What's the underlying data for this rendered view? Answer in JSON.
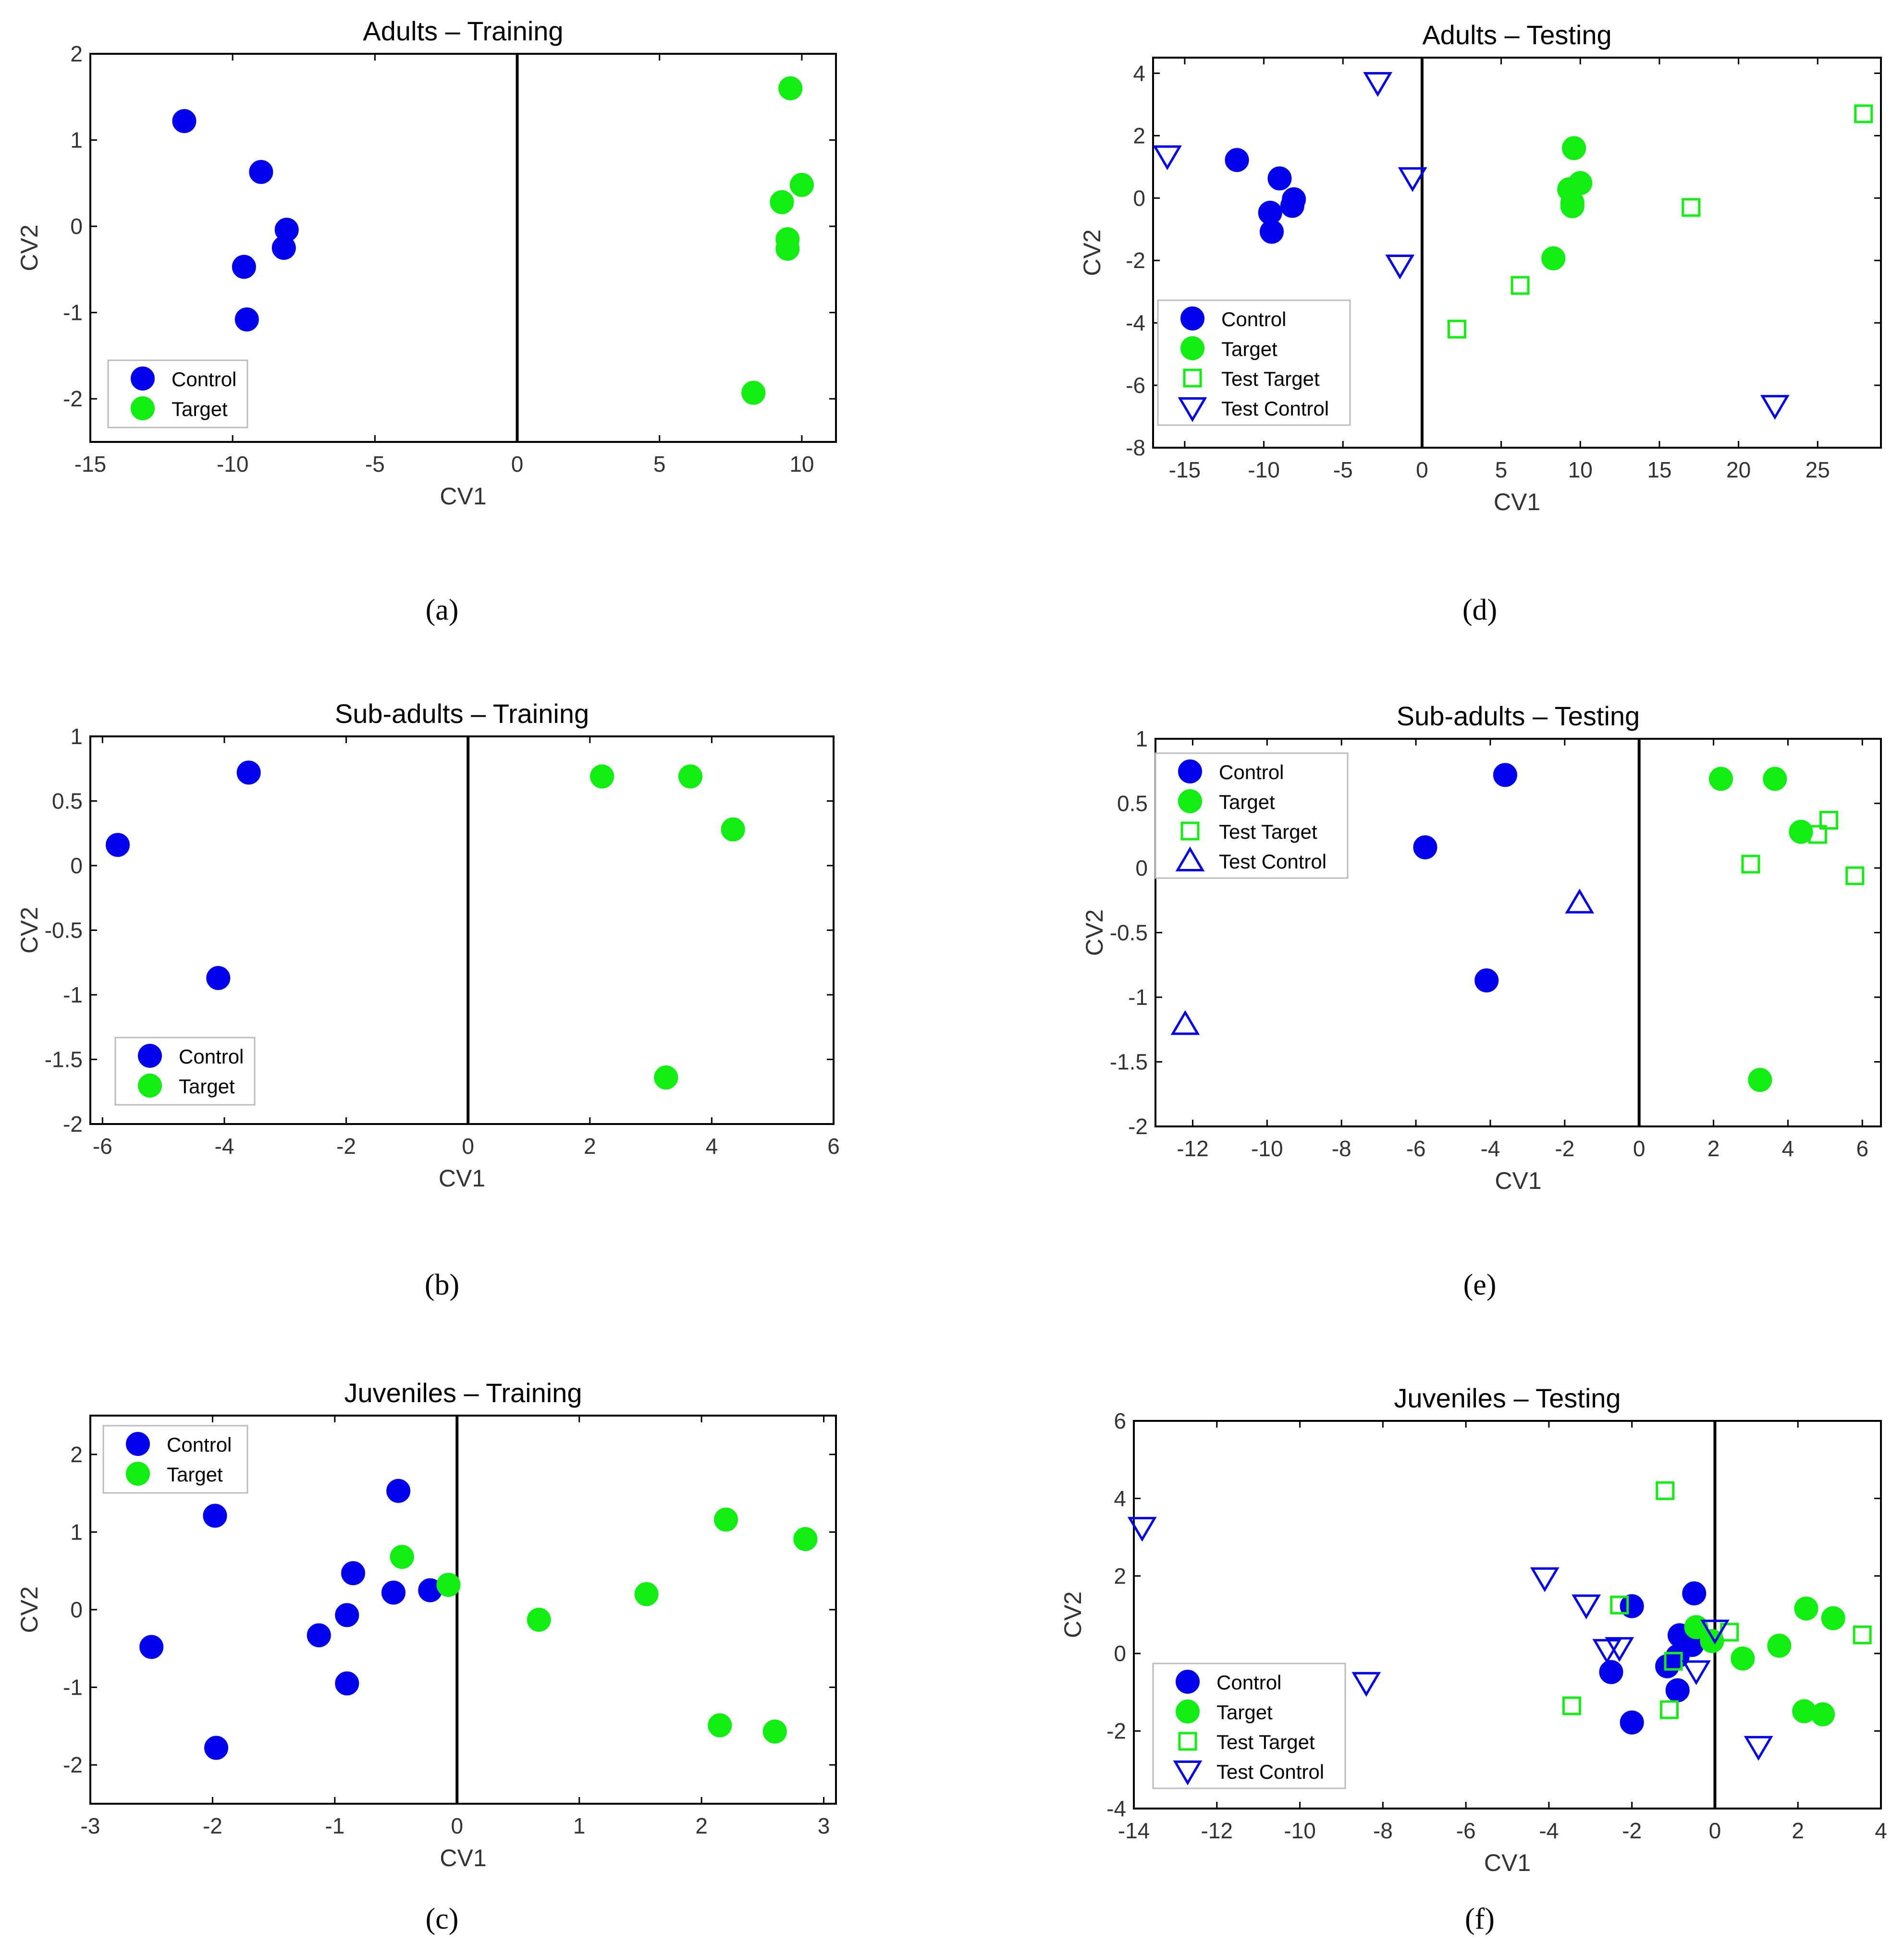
{
  "figure": {
    "captions": [
      "(a)",
      "(d)",
      "(b)",
      "(e)",
      "(c)",
      "(f)"
    ]
  },
  "colors": {
    "control": "#0000ee",
    "target": "#11ee11",
    "divider": "#000000"
  },
  "chart_data": [
    {
      "id": "a",
      "caption": "(a)",
      "type": "scatter",
      "title": "Adults – Training",
      "xlabel": "CV1",
      "ylabel": "CV2",
      "xlim": [
        -15,
        11.2
      ],
      "ylim": [
        -2.5,
        2
      ],
      "xticks": [
        -15,
        -10,
        -5,
        0,
        5,
        10
      ],
      "yticks": [
        -2,
        -1,
        0,
        1,
        2
      ],
      "xtick_labels": [
        "-15",
        "-10",
        "-5",
        "0",
        "5",
        "10"
      ],
      "ytick_labels": [
        "-2",
        "-1",
        "0",
        "1",
        "2"
      ],
      "divider_x": 0,
      "legend_position": "bottom-left",
      "series": [
        {
          "name": "Control",
          "marker": "circle",
          "color": "control",
          "filled": true,
          "x": [
            -11.7,
            -9.0,
            -8.1,
            -8.2,
            -9.6,
            -9.5
          ],
          "y": [
            1.22,
            0.63,
            -0.04,
            -0.25,
            -0.47,
            -1.08
          ]
        },
        {
          "name": "Target",
          "marker": "circle",
          "color": "target",
          "filled": true,
          "x": [
            9.6,
            10.0,
            9.3,
            9.5,
            9.5,
            8.3
          ],
          "y": [
            1.6,
            0.48,
            0.28,
            -0.15,
            -0.26,
            -1.93
          ]
        }
      ]
    },
    {
      "id": "d",
      "caption": "(d)",
      "type": "scatter",
      "title": "Adults – Testing",
      "xlabel": "CV1",
      "ylabel": "CV2",
      "xlim": [
        -17,
        29
      ],
      "ylim": [
        -8,
        4.5
      ],
      "xticks": [
        -15,
        -10,
        -5,
        0,
        5,
        10,
        15,
        20,
        25
      ],
      "yticks": [
        -8,
        -6,
        -4,
        -2,
        0,
        2,
        4
      ],
      "xtick_labels": [
        "-15",
        "-10",
        "-5",
        "0",
        "5",
        "10",
        "15",
        "20",
        "25"
      ],
      "ytick_labels": [
        "-8",
        "-6",
        "-4",
        "-2",
        "0",
        "2",
        "4"
      ],
      "divider_x": 0,
      "legend_position": "bottom-left",
      "series": [
        {
          "name": "Control",
          "marker": "circle",
          "color": "control",
          "filled": true,
          "x": [
            -11.7,
            -9.0,
            -8.1,
            -8.2,
            -9.6,
            -9.5
          ],
          "y": [
            1.22,
            0.63,
            -0.04,
            -0.25,
            -0.47,
            -1.08
          ]
        },
        {
          "name": "Target",
          "marker": "circle",
          "color": "target",
          "filled": true,
          "x": [
            9.6,
            10.0,
            9.3,
            9.5,
            9.5,
            8.3
          ],
          "y": [
            1.6,
            0.48,
            0.28,
            -0.15,
            -0.26,
            -1.93
          ]
        },
        {
          "name": "Test Target",
          "marker": "square",
          "color": "target",
          "filled": false,
          "x": [
            27.9,
            17.0,
            6.2,
            2.2
          ],
          "y": [
            2.7,
            -0.3,
            -2.8,
            -4.2
          ]
        },
        {
          "name": "Test Control",
          "marker": "triangle-down",
          "color": "control",
          "filled": false,
          "x": [
            -16.1,
            -2.8,
            -0.6,
            -1.4,
            22.3
          ],
          "y": [
            1.35,
            3.7,
            0.65,
            -2.15,
            -6.65
          ]
        }
      ]
    },
    {
      "id": "b",
      "caption": "(b)",
      "type": "scatter",
      "title": "Sub-adults – Training",
      "xlabel": "CV1",
      "ylabel": "CV2",
      "xlim": [
        -6.2,
        6
      ],
      "ylim": [
        -2,
        1
      ],
      "xticks": [
        -6,
        -4,
        -2,
        0,
        2,
        4,
        6
      ],
      "yticks": [
        -2,
        -1.5,
        -1,
        -0.5,
        0,
        0.5,
        1
      ],
      "xtick_labels": [
        "-6",
        "-4",
        "-2",
        "0",
        "2",
        "4",
        "6"
      ],
      "ytick_labels": [
        "-2",
        "-1.5",
        "-1",
        "-0.5",
        "0",
        "0.5",
        "1"
      ],
      "divider_x": 0,
      "legend_position": "bottom-left",
      "series": [
        {
          "name": "Control",
          "marker": "circle",
          "color": "control",
          "filled": true,
          "x": [
            -3.6,
            -5.75,
            -4.1
          ],
          "y": [
            0.72,
            0.16,
            -0.87
          ]
        },
        {
          "name": "Target",
          "marker": "circle",
          "color": "target",
          "filled": true,
          "x": [
            2.2,
            3.65,
            4.35,
            3.25
          ],
          "y": [
            0.69,
            0.69,
            0.28,
            -1.64
          ]
        }
      ]
    },
    {
      "id": "e",
      "caption": "(e)",
      "type": "scatter",
      "title": "Sub-adults – Testing",
      "xlabel": "CV1",
      "ylabel": "CV2",
      "xlim": [
        -13,
        6.5
      ],
      "ylim": [
        -2,
        1
      ],
      "xticks": [
        -12,
        -10,
        -8,
        -6,
        -4,
        -2,
        0,
        2,
        4,
        6
      ],
      "yticks": [
        -2,
        -1.5,
        -1,
        -0.5,
        0,
        0.5,
        1
      ],
      "xtick_labels": [
        "-12",
        "-10",
        "-8",
        "-6",
        "-4",
        "-2",
        "0",
        "2",
        "4",
        "6"
      ],
      "ytick_labels": [
        "-2",
        "-1.5",
        "-1",
        "-0.5",
        "0",
        "0.5",
        "1"
      ],
      "divider_x": 0,
      "legend_position": "top-left",
      "series": [
        {
          "name": "Control",
          "marker": "circle",
          "color": "control",
          "filled": true,
          "x": [
            -3.6,
            -5.75,
            -4.1
          ],
          "y": [
            0.72,
            0.16,
            -0.87
          ]
        },
        {
          "name": "Target",
          "marker": "circle",
          "color": "target",
          "filled": true,
          "x": [
            2.2,
            3.65,
            4.35,
            3.25
          ],
          "y": [
            0.69,
            0.69,
            0.28,
            -1.64
          ]
        },
        {
          "name": "Test Target",
          "marker": "square",
          "color": "target",
          "filled": false,
          "x": [
            5.1,
            4.8,
            3.0,
            5.8
          ],
          "y": [
            0.37,
            0.26,
            0.03,
            -0.06
          ]
        },
        {
          "name": "Test Control",
          "marker": "triangle-up",
          "color": "control",
          "filled": false,
          "x": [
            -1.6,
            -12.2
          ],
          "y": [
            -0.27,
            -1.21
          ]
        }
      ]
    },
    {
      "id": "c",
      "caption": "(c)",
      "type": "scatter",
      "title": "Juveniles – Training",
      "xlabel": "CV1",
      "ylabel": "CV2",
      "xlim": [
        -3,
        3.1
      ],
      "ylim": [
        -2.5,
        2.5
      ],
      "xticks": [
        -3,
        -2,
        -1,
        0,
        1,
        2,
        3
      ],
      "yticks": [
        -2,
        -1,
        0,
        1,
        2
      ],
      "xtick_labels": [
        "-3",
        "-2",
        "-1",
        "0",
        "1",
        "2",
        "3"
      ],
      "ytick_labels": [
        "-2",
        "-1",
        "0",
        "1",
        "2"
      ],
      "divider_x": 0,
      "legend_position": "top-left",
      "series": [
        {
          "name": "Control",
          "marker": "circle",
          "color": "control",
          "filled": true,
          "x": [
            -0.48,
            -1.98,
            -0.85,
            -0.52,
            -0.22,
            -0.9,
            -1.13,
            -2.5,
            -0.9,
            -1.97
          ],
          "y": [
            1.53,
            1.21,
            0.47,
            0.22,
            0.25,
            -0.07,
            -0.33,
            -0.48,
            -0.95,
            -1.78
          ]
        },
        {
          "name": "Target",
          "marker": "circle",
          "color": "target",
          "filled": true,
          "x": [
            -0.45,
            -0.07,
            0.67,
            1.55,
            2.2,
            2.85,
            2.15,
            2.6
          ],
          "y": [
            0.68,
            0.32,
            -0.13,
            0.2,
            1.16,
            0.91,
            -1.49,
            -1.57
          ]
        }
      ]
    },
    {
      "id": "f",
      "caption": "(f)",
      "type": "scatter",
      "title": "Juveniles – Testing",
      "xlabel": "CV1",
      "ylabel": "CV2",
      "xlim": [
        -14,
        4
      ],
      "ylim": [
        -4,
        6
      ],
      "xticks": [
        -14,
        -12,
        -10,
        -8,
        -6,
        -4,
        -2,
        0,
        2,
        4
      ],
      "yticks": [
        -4,
        -2,
        0,
        2,
        4,
        6
      ],
      "xtick_labels": [
        "-14",
        "-12",
        "-10",
        "-8",
        "-6",
        "-4",
        "-2",
        "0",
        "2",
        "4"
      ],
      "ytick_labels": [
        "-4",
        "-2",
        "0",
        "2",
        "4",
        "6"
      ],
      "divider_x": 0,
      "legend_position": "bottom-left",
      "series": [
        {
          "name": "Control",
          "marker": "circle",
          "color": "control",
          "filled": true,
          "x": [
            -0.5,
            -2.0,
            -0.85,
            -0.55,
            -1.15,
            -0.9,
            -2.5,
            -0.9,
            -2.0
          ],
          "y": [
            1.55,
            1.22,
            0.47,
            0.22,
            -0.33,
            -0.07,
            -0.48,
            -0.95,
            -1.78
          ]
        },
        {
          "name": "Target",
          "marker": "circle",
          "color": "target",
          "filled": true,
          "x": [
            -0.45,
            -0.07,
            0.67,
            1.55,
            2.2,
            2.85,
            2.15,
            2.6
          ],
          "y": [
            0.68,
            0.32,
            -0.13,
            0.2,
            1.16,
            0.91,
            -1.49,
            -1.57
          ]
        },
        {
          "name": "Test Target",
          "marker": "square",
          "color": "target",
          "filled": false,
          "x": [
            -1.2,
            -2.3,
            -3.45,
            -1.1,
            0.35,
            3.55,
            -1.0
          ],
          "y": [
            4.2,
            1.25,
            -1.35,
            -1.45,
            0.55,
            0.48,
            -0.2
          ]
        },
        {
          "name": "Test Control",
          "marker": "triangle-down",
          "color": "control",
          "filled": false,
          "x": [
            -13.8,
            -4.1,
            -3.1,
            -2.6,
            -2.3,
            -8.4,
            -0.45,
            0.0,
            1.05
          ],
          "y": [
            3.25,
            1.95,
            1.25,
            0.1,
            0.15,
            -0.75,
            -0.45,
            0.6,
            -2.4
          ]
        }
      ]
    }
  ]
}
